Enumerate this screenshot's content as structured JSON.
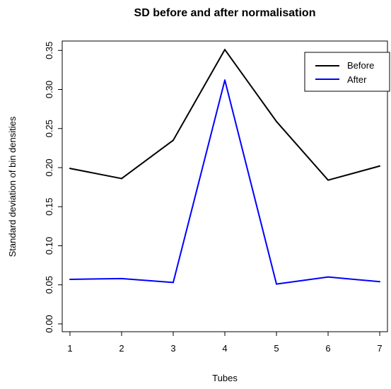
{
  "chart_data": {
    "type": "line",
    "title": "SD before and after normalisation",
    "xlabel": "Tubes",
    "ylabel": "Standard deviation of bin densities",
    "x": [
      1,
      2,
      3,
      4,
      5,
      6,
      7
    ],
    "xlim": [
      0.85,
      7.15
    ],
    "ylim": [
      -0.01,
      0.362
    ],
    "x_ticks": [
      "1",
      "2",
      "3",
      "4",
      "5",
      "6",
      "7"
    ],
    "y_ticks": [
      "0.00",
      "0.05",
      "0.10",
      "0.15",
      "0.20",
      "0.25",
      "0.30",
      "0.35"
    ],
    "grid": false,
    "legend_position": "top-right",
    "series": [
      {
        "name": "Before",
        "color": "#000000",
        "values": [
          0.199,
          0.186,
          0.235,
          0.351,
          0.259,
          0.184,
          0.202
        ]
      },
      {
        "name": "After",
        "color": "#0000ff",
        "values": [
          0.057,
          0.058,
          0.053,
          0.312,
          0.051,
          0.06,
          0.054
        ]
      }
    ]
  }
}
